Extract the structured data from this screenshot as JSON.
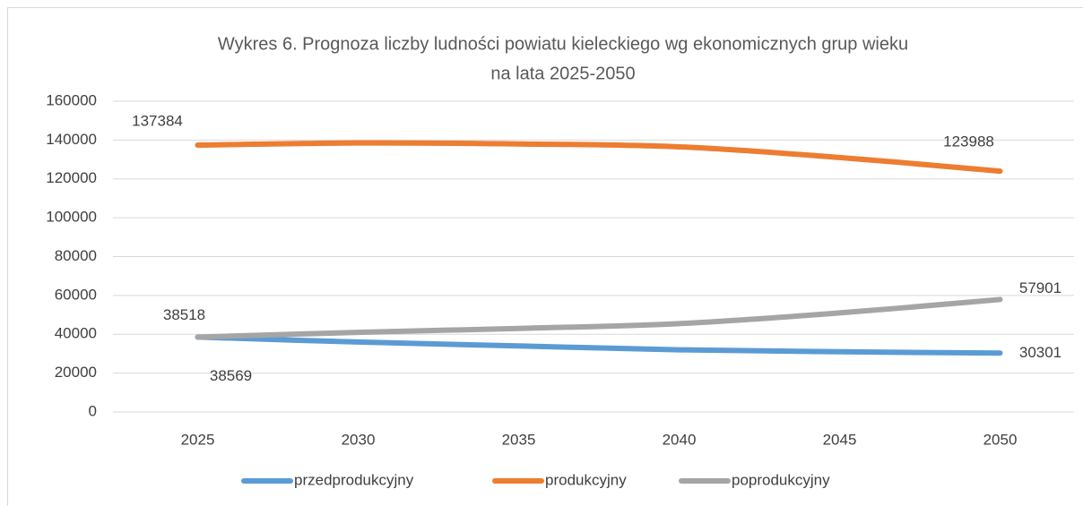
{
  "chart_data": {
    "type": "line",
    "title": [
      "Wykres 6. Prognoza liczby ludności powiatu kieleckiego wg ekonomicznych grup wieku",
      "na lata 2025-2050"
    ],
    "categories": [
      "2025",
      "2030",
      "2035",
      "2040",
      "2045",
      "2050"
    ],
    "series": [
      {
        "name": "przedprodukcyjny",
        "color": "#5b9bd5",
        "values": [
          38569,
          36000,
          34000,
          32000,
          31000,
          30301
        ],
        "value_labels": [
          "38569",
          null,
          null,
          null,
          null,
          "30301"
        ]
      },
      {
        "name": "produkcyjny",
        "color": "#ed7d31",
        "values": [
          137384,
          138500,
          138000,
          136500,
          131000,
          123988
        ],
        "value_labels": [
          "137384",
          null,
          null,
          null,
          null,
          "123988"
        ]
      },
      {
        "name": "poprodukcyjny",
        "color": "#a5a5a5",
        "values": [
          38518,
          41000,
          43000,
          45500,
          51000,
          57901
        ],
        "value_labels": [
          "38518",
          null,
          null,
          null,
          null,
          "57901"
        ]
      }
    ],
    "ylim": [
      0,
      160000
    ],
    "yticks": [
      0,
      20000,
      40000,
      60000,
      80000,
      100000,
      120000,
      140000,
      160000
    ],
    "grid": true,
    "legend": "bottom"
  }
}
